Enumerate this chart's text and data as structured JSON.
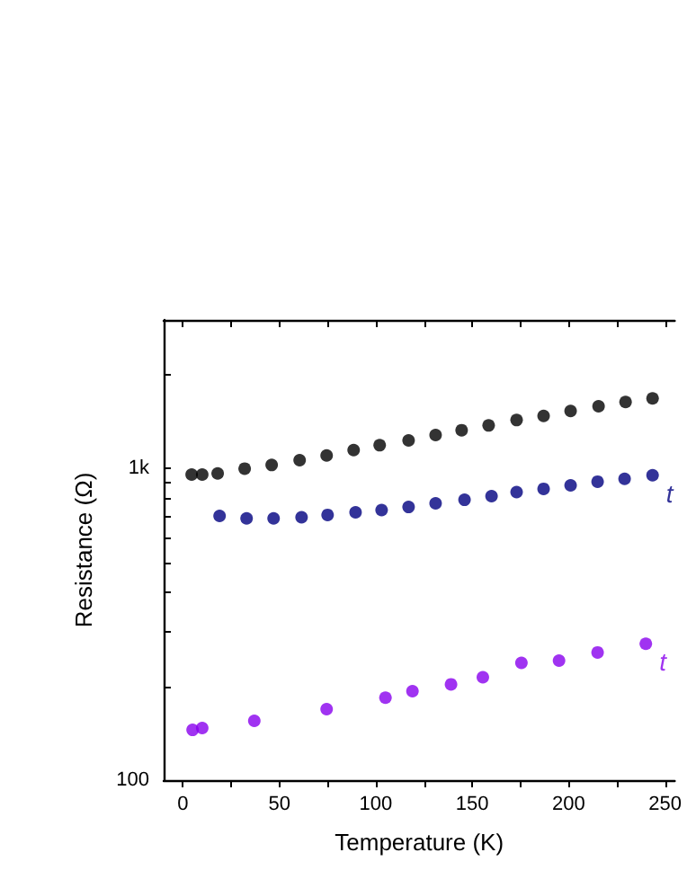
{
  "chart_data": {
    "type": "scatter",
    "xlabel": "Temperature (K)",
    "ylabel": "Resistance (Ω)",
    "log": "y",
    "marker": "circle",
    "grid": false,
    "xlim": [
      -10,
      255
    ],
    "xticks": [
      0,
      {
        "value": 25,
        "label": null
      },
      50,
      {
        "value": 75,
        "label": null
      },
      100,
      {
        "value": 125,
        "label": null
      },
      150,
      {
        "value": 175,
        "label": null
      },
      200,
      {
        "value": 225,
        "label": null
      },
      250
    ],
    "ylim": [
      100,
      3000
    ],
    "yticks": [
      100,
      {
        "value": 200,
        "label": null
      },
      {
        "value": 300,
        "label": null
      },
      {
        "value": 400,
        "label": null
      },
      {
        "value": 500,
        "label": null
      },
      {
        "value": 600,
        "label": null
      },
      {
        "value": 700,
        "label": null
      },
      {
        "value": 800,
        "label": null
      },
      {
        "value": 900,
        "label": null
      },
      {
        "value": 1000,
        "label": "1k"
      },
      {
        "value": 2000,
        "label": null
      },
      {
        "value": 3000,
        "label": null
      }
    ],
    "series": [
      {
        "color": "#000000",
        "x": [
          4.5,
          10,
          18,
          32,
          46,
          60.5,
          74.5,
          88.5,
          102,
          117,
          131,
          144.5,
          158.5,
          173,
          187,
          201,
          215.5,
          229.5,
          243.5
        ],
        "values": [
          957,
          957,
          965,
          1000,
          1027,
          1064,
          1102,
          1147,
          1189,
          1232,
          1282,
          1328,
          1376,
          1432,
          1476,
          1531,
          1586,
          1636,
          1680
        ]
      },
      {
        "name": "t",
        "color": "#000080",
        "x": [
          19,
          33,
          47,
          61.5,
          75,
          89.5,
          103,
          117,
          131,
          146,
          160,
          173,
          187,
          201,
          215,
          229,
          243.5
        ],
        "values": [
          705,
          692,
          692,
          698,
          710,
          724,
          736,
          753,
          774,
          794,
          816,
          841,
          861,
          884,
          908,
          927,
          952
        ]
      },
      {
        "name": "t",
        "color": "#8800ee",
        "x": [
          5,
          10,
          37,
          74.5,
          105,
          119,
          139,
          155.5,
          175.5,
          195,
          215,
          240
        ],
        "values": [
          145,
          147,
          155,
          169,
          184,
          193,
          203,
          214,
          238,
          242,
          257,
          274
        ]
      }
    ]
  }
}
